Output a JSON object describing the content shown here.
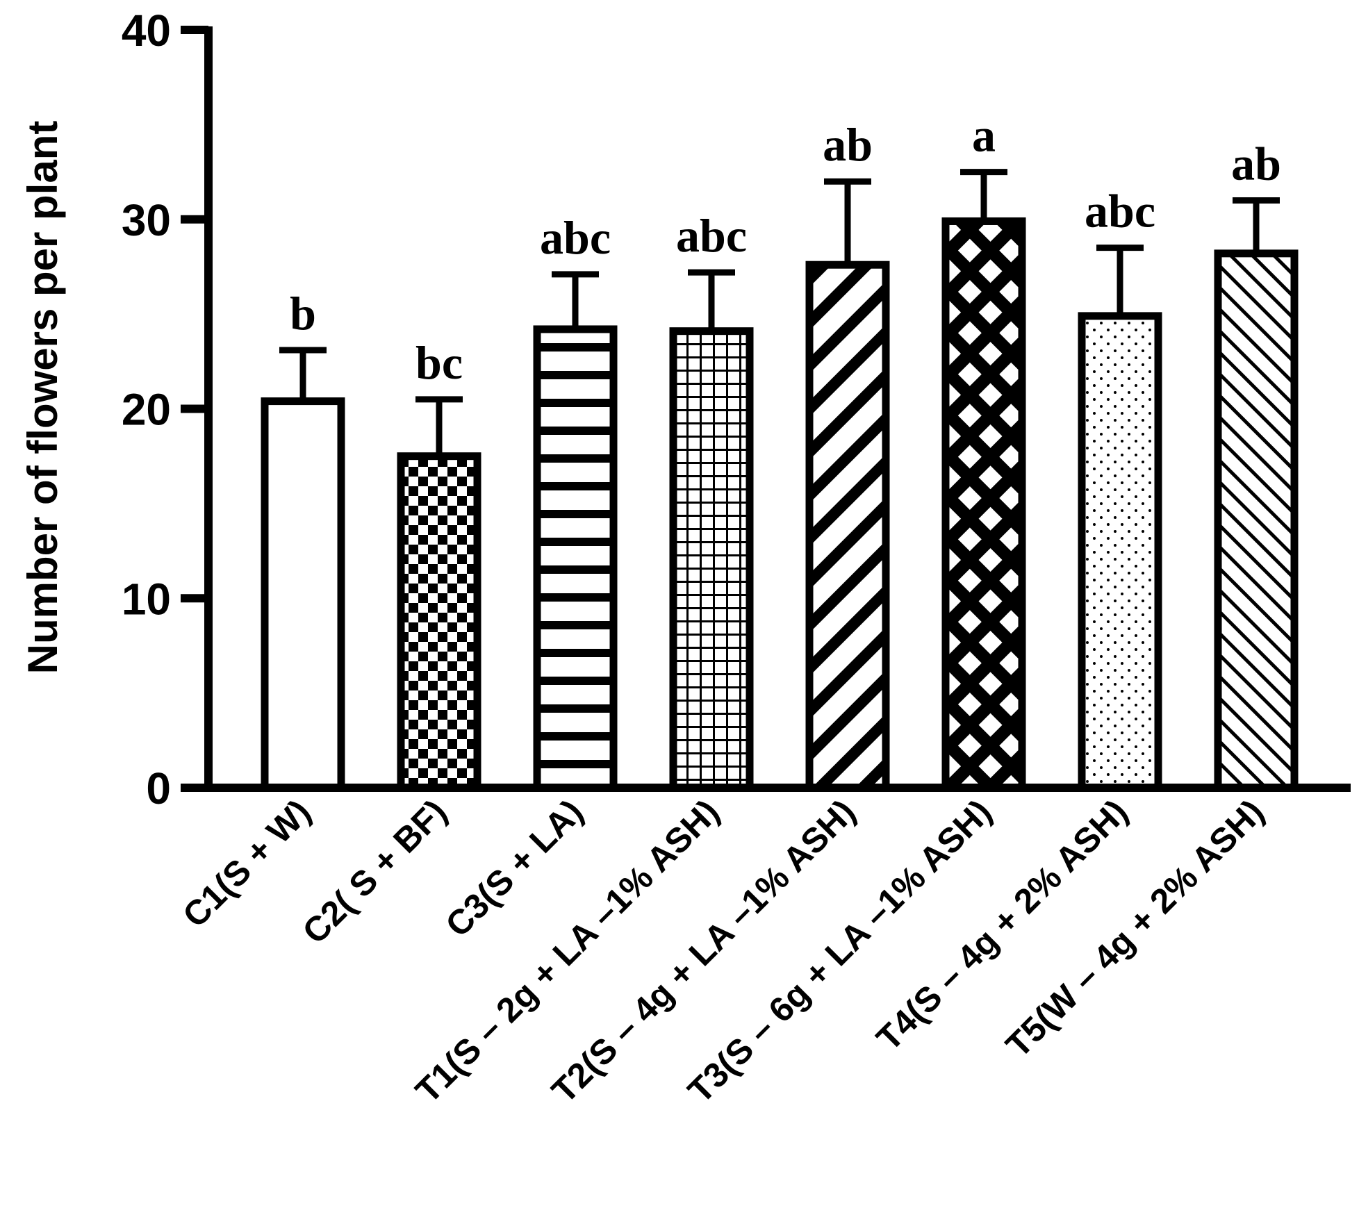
{
  "chart_data": {
    "type": "bar",
    "ylabel": "Number of flowers per plant",
    "xlabel": "",
    "ylim": [
      0,
      40
    ],
    "yticks": [
      0,
      10,
      20,
      30,
      40
    ],
    "grid": false,
    "categories": [
      "C1(S + W)",
      "C2( S + BF)",
      "C3(S + LA)",
      "T1(S – 2g + LA –1% ASH)",
      "T2(S – 4g + LA –1% ASH)",
      "T3(S – 6g + LA –1% ASH)",
      "T4(S – 4g + 2% ASH)",
      "T5(W – 4g + 2% ASH)"
    ],
    "values": [
      20.4,
      17.5,
      24.2,
      24.1,
      27.6,
      29.9,
      24.9,
      28.2
    ],
    "errors": [
      2.7,
      3.0,
      2.9,
      3.1,
      4.4,
      2.6,
      3.6,
      2.8
    ],
    "significance": [
      "b",
      "bc",
      "abc",
      "abc",
      "ab",
      "a",
      "abc",
      "ab"
    ],
    "fill_patterns": [
      "none",
      "checker",
      "horizontal-lines",
      "grid",
      "wide-diagonal",
      "diamond-lattice",
      "dots",
      "fine-diagonal"
    ],
    "colors": {
      "stroke": "#000000",
      "fill": "#ffffff"
    }
  }
}
